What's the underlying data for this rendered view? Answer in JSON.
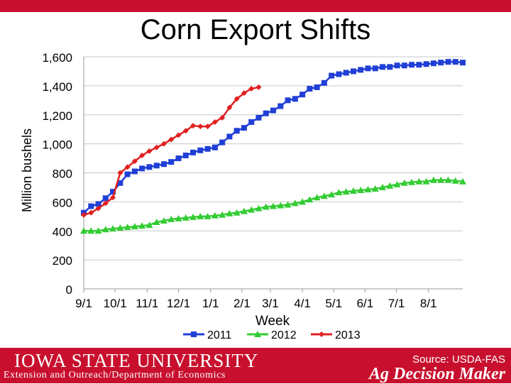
{
  "header": {
    "title": "Corn Export Shifts"
  },
  "footer": {
    "university": "IOWA STATE UNIVERSITY",
    "department": "Extension and Outreach/Department of Economics",
    "source": "Source: USDA-FAS",
    "brand": "Ag Decision Maker"
  },
  "colors": {
    "accent": "#c8102e",
    "s2011": "#1f3fd6",
    "s2012": "#33cc33",
    "s2013": "#e02020"
  },
  "chart_data": {
    "type": "line",
    "title": "",
    "xlabel": "Week",
    "ylabel": "Million bushels",
    "ylim": [
      0,
      1600
    ],
    "yticks": [
      0,
      200,
      400,
      600,
      800,
      1000,
      1200,
      1400,
      1600
    ],
    "ytick_labels": [
      "0",
      "200",
      "400",
      "600",
      "800",
      "1,000",
      "1,200",
      "1,400",
      "1,600"
    ],
    "xlim": [
      0,
      52
    ],
    "xticks": [
      0,
      4.3,
      8.7,
      13,
      17.4,
      21.7,
      25.6,
      30,
      34.3,
      38.6,
      42.9,
      47.3
    ],
    "xtick_labels": [
      "9/1",
      "10/1",
      "11/1",
      "12/1",
      "1/1",
      "2/1",
      "3/1",
      "4/1",
      "5/1",
      "6/1",
      "7/1",
      "8/1"
    ],
    "grid": true,
    "legend": "bottom",
    "series": [
      {
        "name": "2011",
        "marker": "square",
        "x": [
          0,
          1,
          2,
          3,
          4,
          5,
          6,
          7,
          8,
          9,
          10,
          11,
          12,
          13,
          14,
          15,
          16,
          17,
          18,
          19,
          20,
          21,
          22,
          23,
          24,
          25,
          26,
          27,
          28,
          29,
          30,
          31,
          32,
          33,
          34,
          35,
          36,
          37,
          38,
          39,
          40,
          41,
          42,
          43,
          44,
          45,
          46,
          47,
          48,
          49,
          50,
          51,
          52
        ],
        "values": [
          525,
          570,
          585,
          625,
          670,
          730,
          790,
          810,
          830,
          840,
          850,
          860,
          875,
          900,
          920,
          940,
          955,
          965,
          975,
          1010,
          1050,
          1090,
          1110,
          1150,
          1180,
          1210,
          1230,
          1260,
          1300,
          1310,
          1340,
          1380,
          1390,
          1420,
          1470,
          1480,
          1490,
          1500,
          1510,
          1520,
          1520,
          1530,
          1530,
          1540,
          1540,
          1545,
          1545,
          1550,
          1555,
          1560,
          1565,
          1565,
          1560
        ]
      },
      {
        "name": "2012",
        "marker": "triangle",
        "x": [
          0,
          1,
          2,
          3,
          4,
          5,
          6,
          7,
          8,
          9,
          10,
          11,
          12,
          13,
          14,
          15,
          16,
          17,
          18,
          19,
          20,
          21,
          22,
          23,
          24,
          25,
          26,
          27,
          28,
          29,
          30,
          31,
          32,
          33,
          34,
          35,
          36,
          37,
          38,
          39,
          40,
          41,
          42,
          43,
          44,
          45,
          46,
          47,
          48,
          49,
          50,
          51,
          52
        ],
        "values": [
          400,
          400,
          400,
          410,
          415,
          420,
          425,
          430,
          435,
          440,
          460,
          470,
          480,
          485,
          490,
          495,
          500,
          500,
          505,
          510,
          520,
          525,
          535,
          545,
          555,
          565,
          570,
          575,
          580,
          590,
          600,
          615,
          630,
          640,
          650,
          665,
          670,
          675,
          680,
          685,
          690,
          700,
          710,
          720,
          730,
          735,
          740,
          740,
          750,
          750,
          750,
          745,
          740
        ]
      },
      {
        "name": "2013",
        "marker": "diamond",
        "x": [
          0,
          1,
          2,
          3,
          4,
          5,
          6,
          7,
          8,
          9,
          10,
          11,
          12,
          13,
          14,
          15,
          16,
          17,
          18,
          19,
          20,
          21,
          22,
          23,
          24
        ],
        "values": [
          510,
          525,
          555,
          590,
          630,
          800,
          840,
          880,
          920,
          950,
          975,
          1000,
          1030,
          1060,
          1090,
          1125,
          1120,
          1120,
          1150,
          1180,
          1250,
          1310,
          1350,
          1380,
          1390
        ]
      }
    ]
  }
}
